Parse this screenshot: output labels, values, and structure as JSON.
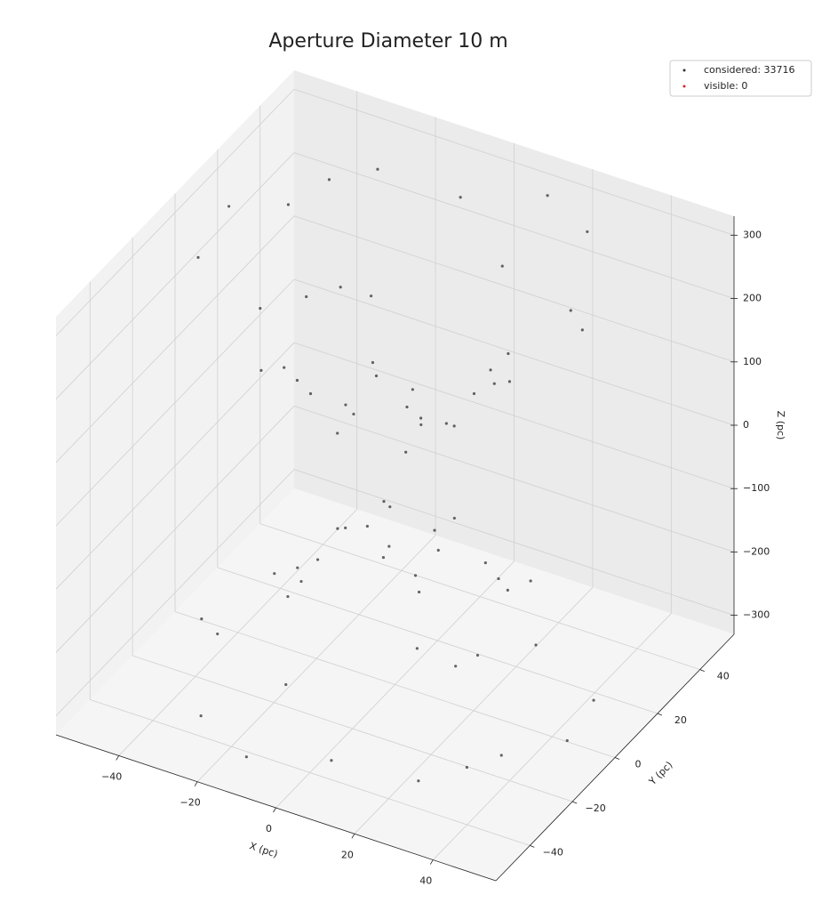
{
  "chart_data": {
    "type": "scatter3d",
    "title": "Aperture Diameter 10 m",
    "x_label": "X (pc)",
    "y_label": "Y (pc)",
    "z_label": "Z (pc)",
    "xlim": [
      -56,
      56
    ],
    "ylim": [
      -56,
      56
    ],
    "zlim": [
      -330,
      330
    ],
    "xticks": [
      {
        "value": -40,
        "label": "−40"
      },
      {
        "value": -20,
        "label": "−20"
      },
      0,
      20,
      40
    ],
    "yticks": [
      {
        "value": -40,
        "label": "−40"
      },
      {
        "value": -20,
        "label": "−20"
      },
      0,
      20,
      40
    ],
    "zticks": [
      {
        "value": -300,
        "label": "−300"
      },
      {
        "value": -200,
        "label": "−200"
      },
      {
        "value": -100,
        "label": "−100"
      },
      0,
      100,
      200,
      300
    ],
    "grid": true,
    "legend": "upper right",
    "series": [
      {
        "name": "considered: 33716",
        "color": "#333333",
        "x": [
          5,
          -8,
          12,
          -15,
          20,
          -22,
          3,
          28,
          -30,
          10,
          -12,
          35,
          -38,
          22,
          -5,
          40,
          -42,
          15,
          -25,
          30,
          -45,
          45,
          0,
          -18,
          18,
          -6,
          14,
          -2,
          25,
          -20,
          8,
          -33,
          38,
          -10,
          6,
          -28,
          -4,
          9,
          -13,
          16,
          -19,
          23,
          -4,
          -27,
          31,
          -11,
          13,
          -36,
          39,
          -21,
          6,
          -41,
          43,
          -14,
          26,
          -31,
          46,
          -46,
          2,
          17,
          -17,
          7,
          -13,
          3,
          -24,
          21,
          -9,
          34,
          -37,
          11,
          -5,
          27
        ],
        "y": [
          3,
          6,
          -10,
          -12,
          8,
          15,
          -25,
          -5,
          -8,
          32,
          -30,
          18,
          20,
          -35,
          40,
          -20,
          -15,
          44,
          38,
          35,
          5,
          5,
          -46,
          22,
          20,
          -16,
          2,
          12,
          -22,
          -26,
          -38,
          30,
          -33,
          8,
          -6,
          10,
          5,
          -7,
          11,
          13,
          -9,
          -14,
          26,
          4,
          9,
          -31,
          29,
          -17,
          -22,
          36,
          -41,
          19,
          14,
          -44,
          -37,
          -34,
          -4,
          -6,
          45,
          -21,
          -19,
          15,
          -3,
          -11,
          21,
          25,
          37,
          -29,
          32,
          -9,
          4,
          -11
        ],
        "z": [
          80,
          120,
          150,
          140,
          180,
          200,
          190,
          220,
          230,
          240,
          250,
          270,
          280,
          275,
          290,
          300,
          310,
          320,
          300,
          325,
          315,
          305,
          310,
          170,
          160,
          110,
          100,
          90,
          210,
          215,
          260,
          295,
          322,
          130,
          70,
          190,
          -75,
          -115,
          -145,
          -150,
          -175,
          -205,
          -185,
          -215,
          -235,
          -245,
          -255,
          -265,
          -285,
          -280,
          -295,
          -305,
          -315,
          -320,
          -300,
          -325,
          -310,
          -300,
          -315,
          -165,
          -160,
          -105,
          -100,
          -85,
          -205,
          -210,
          -265,
          -290,
          -320,
          -130,
          -65,
          -190
        ]
      },
      {
        "name": "visible: 0",
        "color": "#d62728",
        "x": [],
        "y": [],
        "z": []
      }
    ]
  }
}
